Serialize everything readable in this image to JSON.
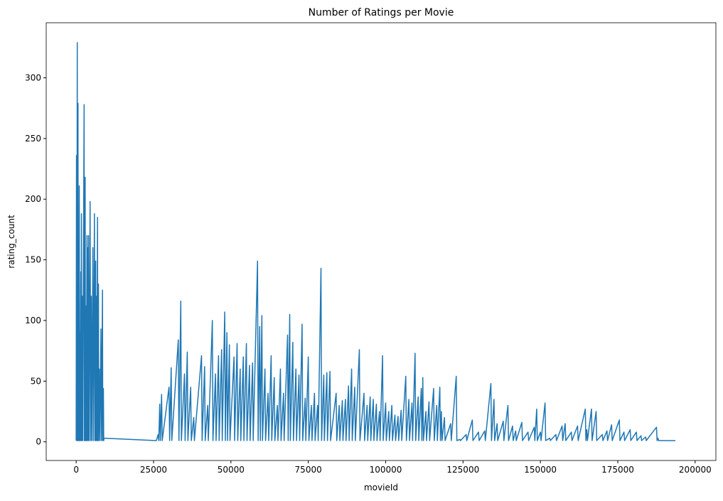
{
  "chart_data": {
    "type": "line",
    "title": "Number of Ratings per Movie",
    "xlabel": "movieId",
    "ylabel": "rating_count",
    "color": "#1f77b4",
    "x": [
      1,
      100,
      200,
      356,
      420,
      500,
      540,
      590,
      680,
      780,
      880,
      1000,
      1100,
      1200,
      1300,
      1500,
      1600,
      1700,
      1800,
      2000,
      2100,
      2571,
      2620,
      2700,
      2800,
      2900,
      3000,
      3200,
      3300,
      3500,
      3600,
      3800,
      3900,
      4000,
      4200,
      4500,
      4700,
      4900,
      5100,
      5400,
      5600,
      5900,
      6100,
      6300,
      6400,
      6500,
      6700,
      6900,
      7000,
      7200,
      7300,
      7500,
      7700,
      8000,
      8200,
      8500,
      8600,
      8800,
      8900,
      9000,
      25900,
      26500,
      26700,
      27000,
      27200,
      27600,
      27800,
      30000,
      30200,
      30700,
      30900,
      33000,
      33200,
      33800,
      34000,
      35000,
      35200,
      35900,
      36100,
      37000,
      37200,
      38000,
      38200,
      40500,
      40700,
      41500,
      41700,
      42500,
      42700,
      44000,
      44200,
      45000,
      45200,
      46000,
      46200,
      47000,
      47200,
      48000,
      48200,
      48700,
      48900,
      49500,
      49700,
      51000,
      51200,
      52000,
      52200,
      53000,
      53200,
      54000,
      54200,
      55000,
      55200,
      56000,
      56200,
      57000,
      57200,
      58600,
      58800,
      59300,
      59500,
      60000,
      60200,
      61000,
      61200,
      62000,
      62200,
      63000,
      63200,
      64000,
      64200,
      65000,
      65200,
      66000,
      66200,
      67000,
      67200,
      68300,
      68500,
      69000,
      69200,
      70000,
      70200,
      71000,
      71200,
      72000,
      72200,
      73000,
      73200,
      74000,
      74200,
      75000,
      75200,
      76000,
      76200,
      77000,
      77200,
      78000,
      78200,
      79100,
      79300,
      80000,
      80200,
      81000,
      81200,
      82000,
      82200,
      84000,
      84200,
      85000,
      85200,
      86000,
      86200,
      87000,
      87200,
      88000,
      88200,
      89000,
      89200,
      90000,
      90200,
      91500,
      91700,
      93000,
      93200,
      94000,
      94200,
      95000,
      95200,
      96000,
      96200,
      97000,
      97200,
      98000,
      98200,
      99000,
      99200,
      100000,
      100200,
      101000,
      101200,
      102000,
      102200,
      103000,
      103200,
      104000,
      104200,
      105000,
      105200,
      106500,
      106700,
      107500,
      107700,
      108500,
      108700,
      109500,
      109700,
      110500,
      110700,
      111500,
      111700,
      112000,
      112200,
      113000,
      113200,
      114000,
      114200,
      115500,
      115700,
      116500,
      116700,
      117500,
      117700,
      118000,
      118200,
      119000,
      119200,
      121000,
      121200,
      122800,
      123000,
      124000,
      124200,
      126000,
      126200,
      128000,
      128200,
      130000,
      130200,
      132000,
      132200,
      134000,
      134200,
      135000,
      135200,
      136000,
      136200,
      138000,
      138200,
      139500,
      139700,
      141000,
      141200,
      142000,
      142200,
      144000,
      144200,
      146000,
      146200,
      148000,
      148200,
      148800,
      149000,
      150000,
      150200,
      151500,
      151700,
      153000,
      153200,
      155000,
      155200,
      157000,
      157200,
      158000,
      158200,
      160000,
      160200,
      162000,
      162200,
      164500,
      164700,
      165000,
      165200,
      166500,
      166700,
      168000,
      168200,
      170000,
      170200,
      171500,
      171700,
      173000,
      173200,
      175500,
      175700,
      177000,
      177200,
      179000,
      179200,
      181000,
      181200,
      182500,
      182700,
      184000,
      184200,
      187500,
      187700,
      188000,
      188200,
      193609
    ],
    "values": [
      1,
      236,
      1,
      329,
      1,
      170,
      1,
      279,
      1,
      150,
      1,
      211,
      1,
      90,
      1,
      140,
      1,
      188,
      1,
      120,
      1,
      278,
      1,
      100,
      1,
      218,
      1,
      112,
      1,
      170,
      1,
      160,
      1,
      170,
      1,
      198,
      1,
      120,
      1,
      160,
      1,
      188,
      1,
      149,
      1,
      120,
      1,
      185,
      1,
      130,
      1,
      60,
      1,
      93,
      1,
      125,
      1,
      44,
      1,
      3,
      1,
      6,
      1,
      31,
      1,
      39,
      1,
      45,
      1,
      61,
      1,
      84,
      1,
      116,
      1,
      56,
      1,
      74,
      1,
      45,
      1,
      20,
      1,
      71,
      1,
      62,
      1,
      30,
      1,
      100,
      1,
      56,
      1,
      71,
      1,
      76,
      1,
      107,
      1,
      90,
      1,
      80,
      1,
      70,
      1,
      81,
      1,
      60,
      1,
      70,
      1,
      81,
      1,
      63,
      1,
      65,
      1,
      149,
      1,
      95,
      1,
      104,
      1,
      60,
      1,
      40,
      1,
      71,
      1,
      53,
      1,
      30,
      1,
      60,
      1,
      40,
      1,
      88,
      1,
      105,
      1,
      82,
      1,
      60,
      1,
      55,
      1,
      97,
      1,
      36,
      1,
      70,
      1,
      30,
      1,
      40,
      1,
      30,
      1,
      143,
      1,
      55,
      1,
      57,
      1,
      58,
      1,
      40,
      1,
      30,
      1,
      34,
      1,
      35,
      1,
      46,
      1,
      60,
      1,
      45,
      1,
      76,
      1,
      40,
      1,
      30,
      1,
      37,
      1,
      35,
      1,
      31,
      1,
      25,
      1,
      71,
      1,
      32,
      1,
      25,
      1,
      30,
      1,
      22,
      1,
      21,
      1,
      26,
      1,
      54,
      1,
      35,
      1,
      32,
      1,
      73,
      1,
      37,
      1,
      44,
      1,
      53,
      1,
      25,
      1,
      33,
      1,
      44,
      1,
      30,
      1,
      45,
      1,
      25,
      1,
      20,
      1,
      15,
      1,
      54,
      1,
      2,
      1,
      6,
      1,
      18,
      1,
      8,
      1,
      9,
      1,
      48,
      1,
      35,
      1,
      15,
      1,
      17,
      1,
      30,
      1,
      13,
      1,
      9,
      1,
      16,
      1,
      8,
      1,
      12,
      1,
      27,
      1,
      8,
      1,
      32,
      1,
      3,
      1,
      6,
      1,
      13,
      1,
      15,
      1,
      8,
      1,
      13,
      1,
      27,
      1,
      10,
      1,
      27,
      1,
      25,
      1,
      6,
      1,
      9,
      1,
      14,
      1,
      18,
      1,
      8,
      1,
      10,
      1,
      8,
      1,
      5,
      1,
      4,
      1,
      12,
      1,
      3,
      1,
      1
    ],
    "xlim": [
      -9680,
      206700
    ],
    "ylim": [
      -15.4,
      345.4
    ],
    "xticks": [
      0,
      25000,
      50000,
      75000,
      100000,
      125000,
      150000,
      175000,
      200000
    ],
    "yticks": [
      0,
      50,
      100,
      150,
      200,
      250,
      300
    ]
  }
}
